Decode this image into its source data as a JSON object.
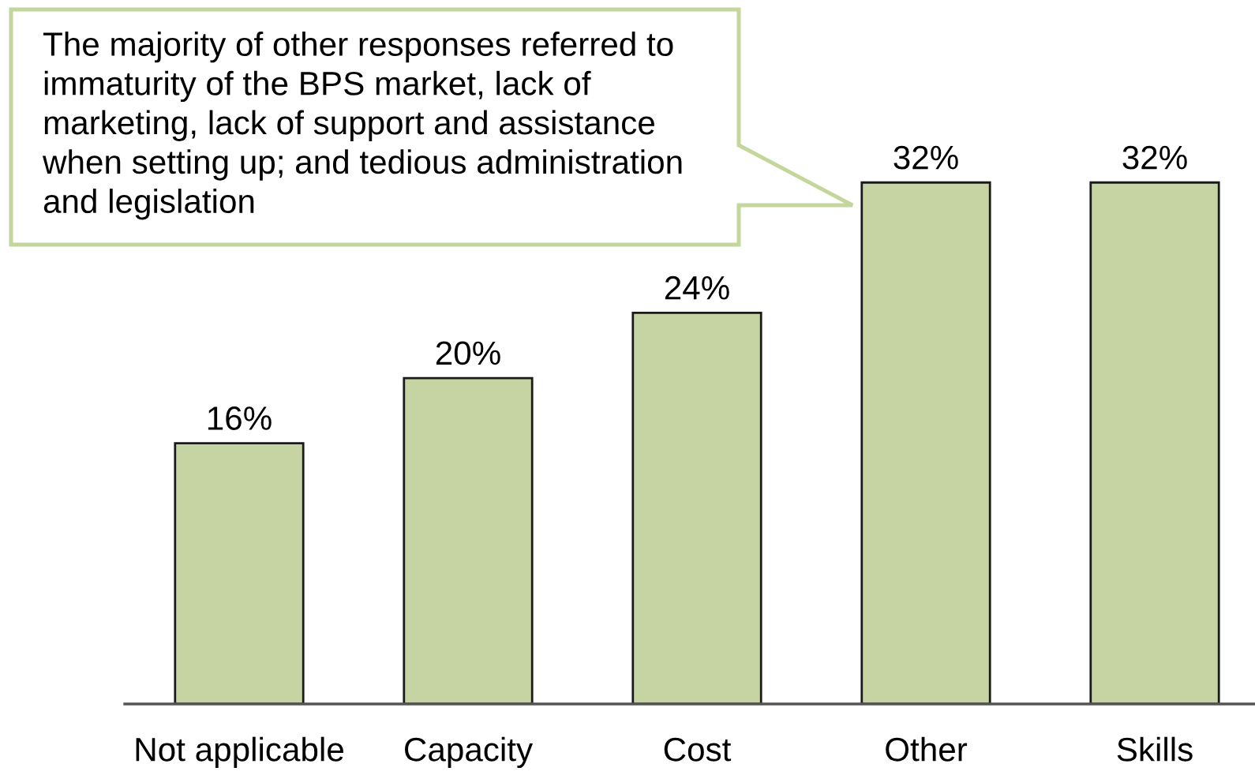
{
  "chart_data": {
    "type": "bar",
    "categories": [
      "Not applicable",
      "Capacity",
      "Cost",
      "Other",
      "Skills"
    ],
    "values": [
      16,
      20,
      24,
      32,
      32
    ],
    "color": "#c6d4a4",
    "value_labels": [
      "16%",
      "20%",
      "24%",
      "32%",
      "32%"
    ],
    "tick_labels": "x",
    "annotations": [
      "The majority of other responses referred to\nimmaturity of the BPS market, lack of\nmarketing, lack of support and assistance\nwhen setting up; and tedious administration\nand legislation"
    ]
  }
}
